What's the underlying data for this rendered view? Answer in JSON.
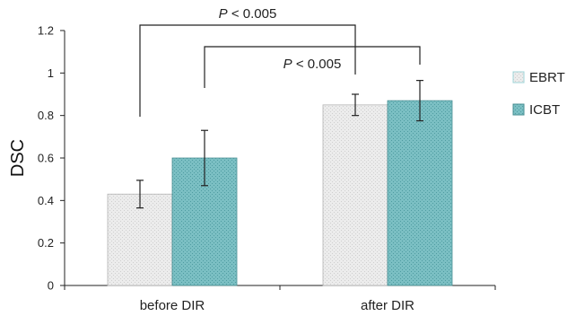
{
  "chart_data": {
    "type": "bar",
    "categories": [
      "before DIR",
      "after DIR"
    ],
    "series": [
      {
        "name": "EBRT",
        "values": [
          0.43,
          0.85
        ],
        "errors": [
          0.065,
          0.05
        ],
        "color": "#ececec",
        "pattern_color": "#cfcfcf"
      },
      {
        "name": "ICBT",
        "values": [
          0.6,
          0.87
        ],
        "errors": [
          0.13,
          0.095
        ],
        "color": "#7bbfc3",
        "pattern_color": "#4f9ca1"
      }
    ],
    "xlabel": "",
    "ylabel": "DSC",
    "ylim": [
      0,
      1.2
    ],
    "yticks": [
      0,
      0.2,
      0.4,
      0.6,
      0.8,
      1,
      1.2
    ],
    "ytick_labels": [
      "0",
      "0.2",
      "0.4",
      "0.6",
      "0.8",
      "1",
      "1.2"
    ],
    "legend_position": "right",
    "grid": false,
    "annotations": [
      {
        "text_italic": "P",
        "text_rest": " < 0.005",
        "from": {
          "category": 0,
          "series": 0
        },
        "to": {
          "category": 1,
          "series": 0
        }
      },
      {
        "text_italic": "P",
        "text_rest": " < 0.005",
        "from": {
          "category": 0,
          "series": 1
        },
        "to": {
          "category": 1,
          "series": 1
        }
      }
    ]
  }
}
